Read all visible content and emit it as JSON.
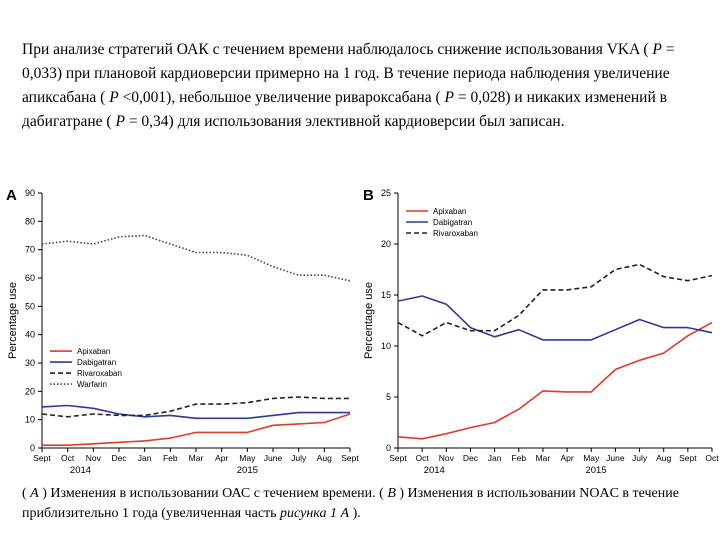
{
  "paragraph": [
    {
      "t": "При анализе стратегий ОАК с течением времени наблюдалось снижение использования VKA ( ",
      "i": false
    },
    {
      "t": "P",
      "i": true
    },
    {
      "t": " = 0,033) при плановой кардиоверсии примерно на 1 год. В течение периода наблюдения увеличение апиксабана ( ",
      "i": false
    },
    {
      "t": "P",
      "i": true
    },
    {
      "t": " <0,001), небольшое увеличение ривароксабана ( ",
      "i": false
    },
    {
      "t": "P",
      "i": true
    },
    {
      "t": " = 0,028) и никаких изменений в дабигатране ( ",
      "i": false
    },
    {
      "t": "P",
      "i": true
    },
    {
      "t": " = 0,34) для использования элективной кардиоверсии был записан.",
      "i": false
    }
  ],
  "caption": [
    {
      "t": "( ",
      "i": false
    },
    {
      "t": "A",
      "i": true
    },
    {
      "t": " ) Изменения в использовании ОАС с течением времени. ( ",
      "i": false
    },
    {
      "t": "B",
      "i": true
    },
    {
      "t": " ) Изменения в использовании NOAC в течение приблизительно 1 года (увеличенная часть ",
      "i": false
    },
    {
      "t": "рисунка 1 А",
      "i": true
    },
    {
      "t": " ).",
      "i": false
    }
  ],
  "colors": {
    "apixaban": "#e03a2a",
    "dabigatran": "#2b3a9a",
    "rivaroxaban": "#222222",
    "warfarin": "#444444"
  },
  "chart_data": [
    {
      "panel_label": "A",
      "type": "line",
      "categories": [
        "Sept",
        "Oct",
        "Nov",
        "Dec",
        "Jan",
        "Feb",
        "Mar",
        "Apr",
        "May",
        "June",
        "July",
        "Aug",
        "Sept"
      ],
      "year_labels": [
        "2014",
        "2015"
      ],
      "ylabel": "Percentage use",
      "ylim": [
        0,
        90
      ],
      "yticks": [
        0,
        10,
        20,
        30,
        40,
        50,
        60,
        70,
        80,
        90
      ],
      "legend_position": "middle-left",
      "series": [
        {
          "name": "Apixaban",
          "style": "solid",
          "color_key": "apixaban",
          "values": [
            1,
            1,
            1.5,
            2,
            2.5,
            3.5,
            5.5,
            5.5,
            5.5,
            8,
            8.5,
            9,
            12
          ]
        },
        {
          "name": "Dabigatran",
          "style": "solid",
          "color_key": "dabigatran",
          "values": [
            14.5,
            15,
            14,
            12,
            11,
            11.5,
            10.5,
            10.5,
            10.5,
            11.5,
            12.5,
            12.5,
            12.5
          ]
        },
        {
          "name": "Rivaroxaban",
          "style": "dashed",
          "color_key": "rivaroxaban",
          "values": [
            12,
            11,
            12,
            11.5,
            11.5,
            13,
            15.5,
            15.5,
            16,
            17.5,
            18,
            17.5,
            17.5
          ]
        },
        {
          "name": "Warfarin",
          "style": "dotted",
          "color_key": "warfarin",
          "values": [
            72,
            73,
            72,
            74.5,
            75,
            72,
            69,
            69,
            68,
            64,
            61,
            61,
            59
          ]
        }
      ]
    },
    {
      "panel_label": "B",
      "type": "line",
      "categories": [
        "Sept",
        "Oct",
        "Nov",
        "Dec",
        "Jan",
        "Feb",
        "Mar",
        "Apr",
        "May",
        "June",
        "July",
        "Aug",
        "Sept",
        "Oct"
      ],
      "year_labels": [
        "2014",
        "2015"
      ],
      "ylabel": "Percentage use",
      "ylim": [
        0,
        25
      ],
      "yticks": [
        0,
        5,
        10,
        15,
        20,
        25
      ],
      "legend_position": "top-left",
      "series": [
        {
          "name": "Apixaban",
          "style": "solid",
          "color_key": "apixaban",
          "values": [
            1.1,
            0.9,
            1.4,
            2.0,
            2.5,
            3.8,
            5.6,
            5.5,
            5.5,
            7.7,
            8.6,
            9.3,
            11.0,
            12.3
          ]
        },
        {
          "name": "Dabigatran",
          "style": "solid",
          "color_key": "dabigatran",
          "values": [
            14.4,
            14.9,
            14.1,
            11.8,
            10.9,
            11.6,
            10.6,
            10.6,
            10.6,
            11.6,
            12.6,
            11.8,
            11.8,
            11.3
          ]
        },
        {
          "name": "Rivaroxaban",
          "style": "dashed",
          "color_key": "rivaroxaban",
          "values": [
            12.3,
            11.0,
            12.3,
            11.5,
            11.5,
            13.0,
            15.5,
            15.5,
            15.8,
            17.5,
            18.0,
            16.8,
            16.4,
            16.9
          ]
        }
      ]
    }
  ]
}
